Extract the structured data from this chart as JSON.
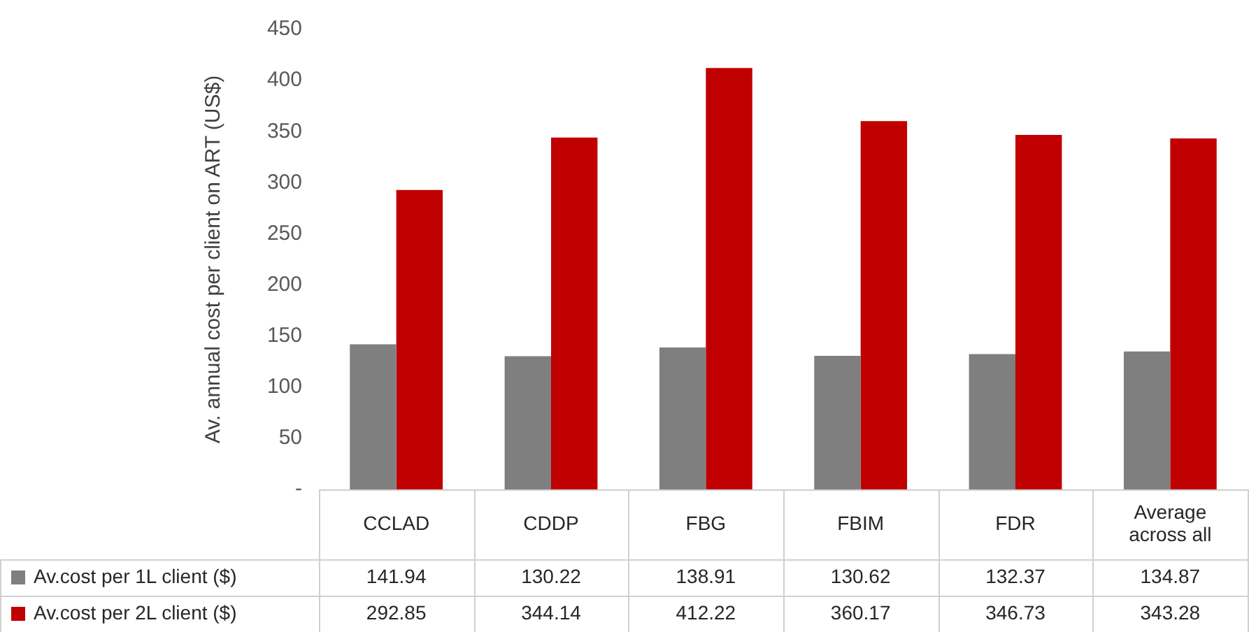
{
  "chart_data": {
    "type": "bar",
    "ylabel": "Av. annual cost per client on ART (US$)",
    "categories": [
      "CCLAD",
      "CDDP",
      "FBG",
      "FBIM",
      "FDR",
      "Average across all"
    ],
    "series": [
      {
        "name": "Av.cost per 1L client ($)",
        "color": "#7f7f7f",
        "values": [
          141.94,
          130.22,
          138.91,
          130.62,
          132.37,
          134.87
        ]
      },
      {
        "name": "Av.cost per 2L client ($)",
        "color": "#c00000",
        "values": [
          292.85,
          344.14,
          412.22,
          360.17,
          346.73,
          343.28
        ]
      }
    ],
    "ylim": [
      0,
      450
    ],
    "yticks": [
      {
        "value": 0,
        "label": "-"
      },
      50,
      100,
      150,
      200,
      250,
      300,
      350,
      400,
      450
    ],
    "grid": false,
    "legend": "bottom",
    "data_labels": true
  }
}
